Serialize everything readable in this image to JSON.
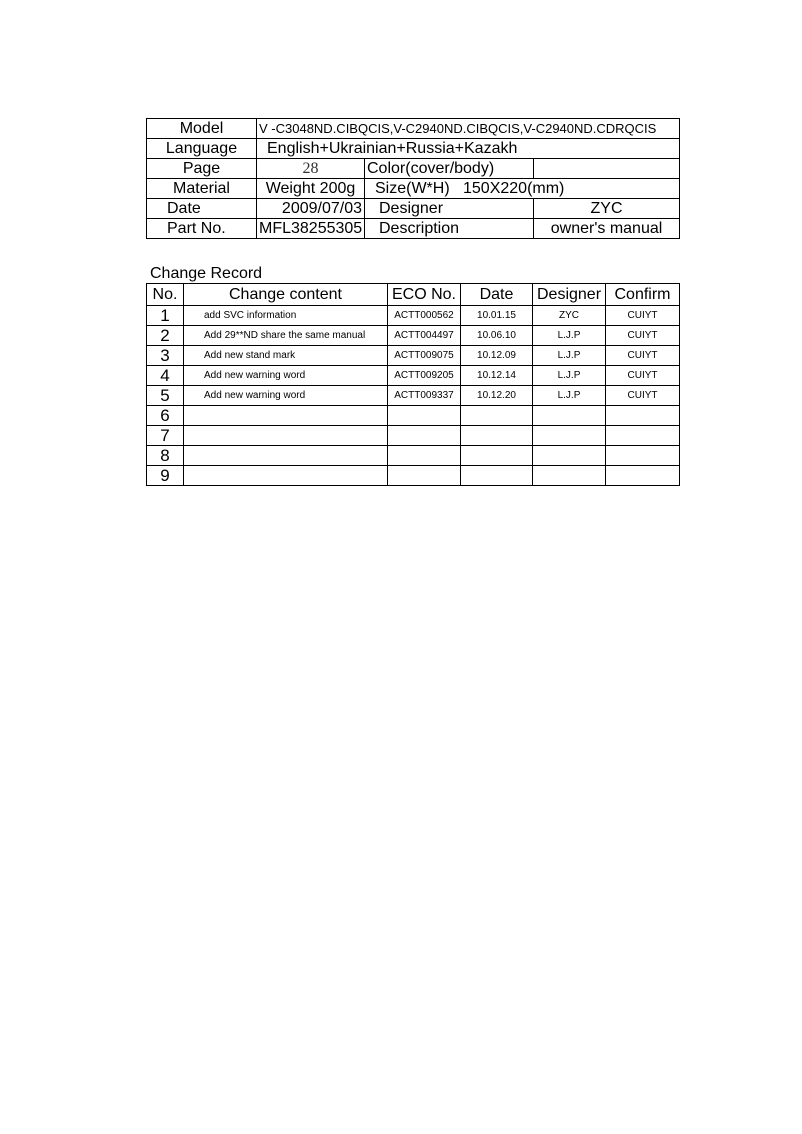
{
  "info": {
    "model_label": "Model",
    "model": "V -C3048ND.CIBQCIS,V-C2940ND.CIBQCIS,V-C2940ND.CDRQCIS",
    "language_label": "Language",
    "language": "English+Ukrainian+Russia+Kazakh",
    "page_label": "Page",
    "page": "28",
    "color_label": "Color(cover/body)",
    "color": "",
    "material_label": "Material",
    "weight": "Weight 200g",
    "size": "Size(W*H)   150X220(mm)",
    "date_label": "Date",
    "date": "2009/07/03",
    "designer_label": "Designer",
    "designer": "ZYC",
    "partno_label": "Part No.",
    "partno": "MFL38255305",
    "description_label": "Description",
    "description": "owner's manual"
  },
  "change_record": {
    "title": "Change Record",
    "headers": [
      "No.",
      "Change content",
      "ECO No.",
      "Date",
      "Designer",
      "Confirm"
    ],
    "rows": [
      [
        "1",
        "add SVC information",
        "ACTT000562",
        "10.01.15",
        "ZYC",
        "CUIYT"
      ],
      [
        "2",
        "Add 29**ND share the same manual",
        "ACTT004497",
        "10.06.10",
        "L.J.P",
        "CUIYT"
      ],
      [
        "3",
        "Add new stand mark",
        "ACTT009075",
        "10.12.09",
        "L.J.P",
        "CUIYT"
      ],
      [
        "4",
        "Add new warning word",
        "ACTT009205",
        "10.12.14",
        "L.J.P",
        "CUIYT"
      ],
      [
        "5",
        "Add new warning word",
        "ACTT009337",
        "10.12.20",
        "L.J.P",
        "CUIYT"
      ],
      [
        "6",
        "",
        "",
        "",
        "",
        ""
      ],
      [
        "7",
        "",
        "",
        "",
        "",
        ""
      ],
      [
        "8",
        "",
        "",
        "",
        "",
        ""
      ],
      [
        "9",
        "",
        "",
        "",
        "",
        ""
      ]
    ]
  }
}
